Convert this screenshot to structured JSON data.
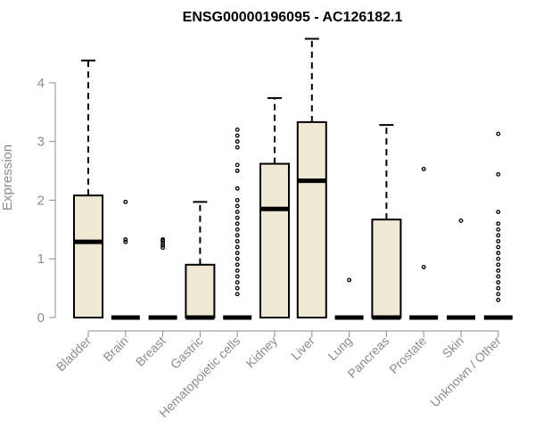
{
  "chart_data": {
    "type": "box",
    "title": "ENSG00000196095 - AC126182.1",
    "xlabel": "",
    "ylabel": "Expression",
    "ylim": [
      0,
      4.8
    ],
    "yticks": [
      0,
      1,
      2,
      3,
      4
    ],
    "colors": {
      "box_fill": "#efe8d2",
      "box_stroke": "#000000",
      "axis": "#8c8c8c"
    },
    "categories": [
      "Bladder",
      "Brain",
      "Breast",
      "Gastric",
      "Hematopoietic cells",
      "Kidney",
      "Liver",
      "Lung",
      "Pancreas",
      "Prostate",
      "Skin",
      "Unknown / Other"
    ],
    "boxes": [
      {
        "min": 0,
        "q1": 0,
        "median": 1.29,
        "q3": 2.08,
        "max": 4.38,
        "outliers": []
      },
      {
        "min": 0,
        "q1": 0,
        "median": 0,
        "q3": 0,
        "max": 0,
        "outliers": [
          1.29,
          1.33,
          1.97
        ]
      },
      {
        "min": 0,
        "q1": 0,
        "median": 0,
        "q3": 0,
        "max": 0,
        "outliers": [
          1.19,
          1.23,
          1.27,
          1.31,
          1.33
        ]
      },
      {
        "min": 0,
        "q1": 0,
        "median": 0,
        "q3": 0.9,
        "max": 1.97,
        "outliers": []
      },
      {
        "min": 0,
        "q1": 0,
        "median": 0,
        "q3": 0,
        "max": 0,
        "outliers": [
          0.4,
          0.5,
          0.6,
          0.7,
          0.8,
          0.9,
          1.0,
          1.1,
          1.2,
          1.3,
          1.4,
          1.5,
          1.6,
          1.7,
          1.8,
          1.9,
          2.0,
          2.2,
          2.5,
          2.6,
          2.9,
          3.0,
          3.1,
          3.2
        ]
      },
      {
        "min": 0,
        "q1": 0,
        "median": 1.85,
        "q3": 2.62,
        "max": 3.74,
        "outliers": []
      },
      {
        "min": 0,
        "q1": 0,
        "median": 2.33,
        "q3": 3.33,
        "max": 4.75,
        "outliers": []
      },
      {
        "min": 0,
        "q1": 0,
        "median": 0,
        "q3": 0,
        "max": 0,
        "outliers": [
          0.64
        ]
      },
      {
        "min": 0,
        "q1": 0,
        "median": 0,
        "q3": 1.67,
        "max": 3.28,
        "outliers": []
      },
      {
        "min": 0,
        "q1": 0,
        "median": 0,
        "q3": 0,
        "max": 0,
        "outliers": [
          0.86,
          2.53
        ]
      },
      {
        "min": 0,
        "q1": 0,
        "median": 0,
        "q3": 0,
        "max": 0,
        "outliers": [
          1.65
        ]
      },
      {
        "min": 0,
        "q1": 0,
        "median": 0,
        "q3": 0,
        "max": 0,
        "outliers": [
          0.3,
          0.4,
          0.5,
          0.6,
          0.7,
          0.8,
          0.9,
          1.0,
          1.1,
          1.2,
          1.3,
          1.4,
          1.5,
          1.6,
          1.8,
          2.44,
          3.13
        ]
      }
    ]
  }
}
